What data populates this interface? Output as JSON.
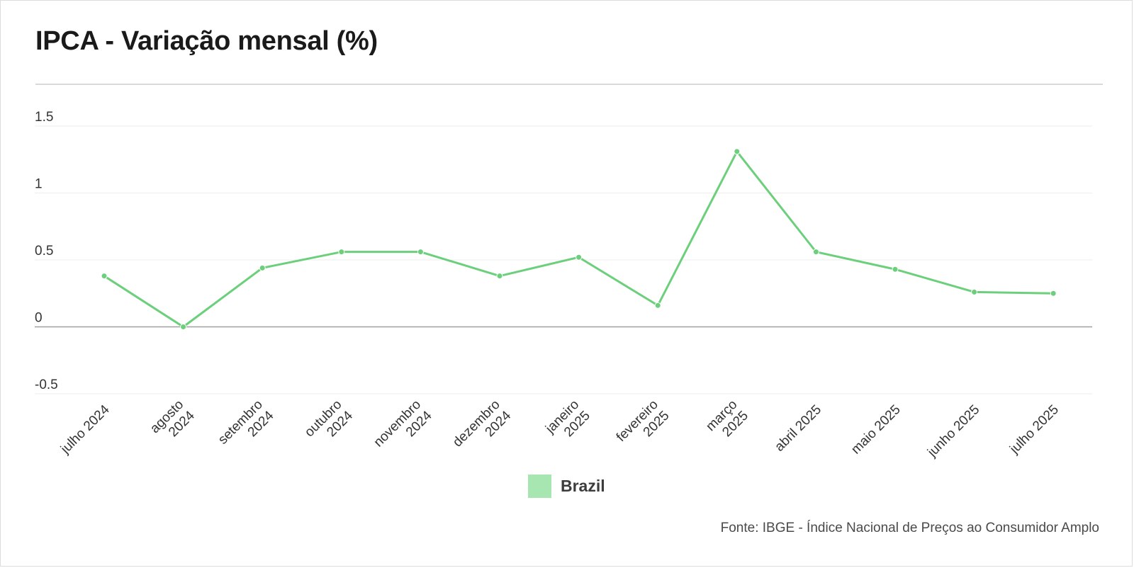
{
  "title": "IPCA - Variação mensal (%)",
  "source": "Fonte: IBGE - Índice Nacional de Preços ao Consumidor Amplo",
  "colors": {
    "line": "#6ccf7b",
    "legend_swatch": "#a8e6b1",
    "gridline": "#eeeeee",
    "zero_line": "#a0a0a0"
  },
  "chart_data": {
    "type": "line",
    "title": "IPCA - Variação mensal (%)",
    "xlabel": "",
    "ylabel": "",
    "ylim": [
      -0.5,
      1.5
    ],
    "yticks": [
      "1.5",
      "1",
      "0.5",
      "0",
      "-0.5"
    ],
    "ytick_values": [
      1.5,
      1,
      0.5,
      0,
      -0.5
    ],
    "grid": true,
    "legend_position": "bottom-center",
    "categories": [
      [
        "julho 2024"
      ],
      [
        "agosto",
        "2024"
      ],
      [
        "setembro",
        "2024"
      ],
      [
        "outubro",
        "2024"
      ],
      [
        "novembro",
        "2024"
      ],
      [
        "dezembro",
        "2024"
      ],
      [
        "janeiro",
        "2025"
      ],
      [
        "fevereiro",
        "2025"
      ],
      [
        "março",
        "2025"
      ],
      [
        "abril 2025"
      ],
      [
        "maio 2025"
      ],
      [
        "junho 2025"
      ],
      [
        "julho 2025"
      ]
    ],
    "series": [
      {
        "name": "Brazil",
        "values": [
          0.38,
          0.0,
          0.44,
          0.56,
          0.56,
          0.38,
          0.52,
          0.16,
          1.31,
          0.56,
          0.43,
          0.26,
          0.25
        ]
      }
    ]
  }
}
